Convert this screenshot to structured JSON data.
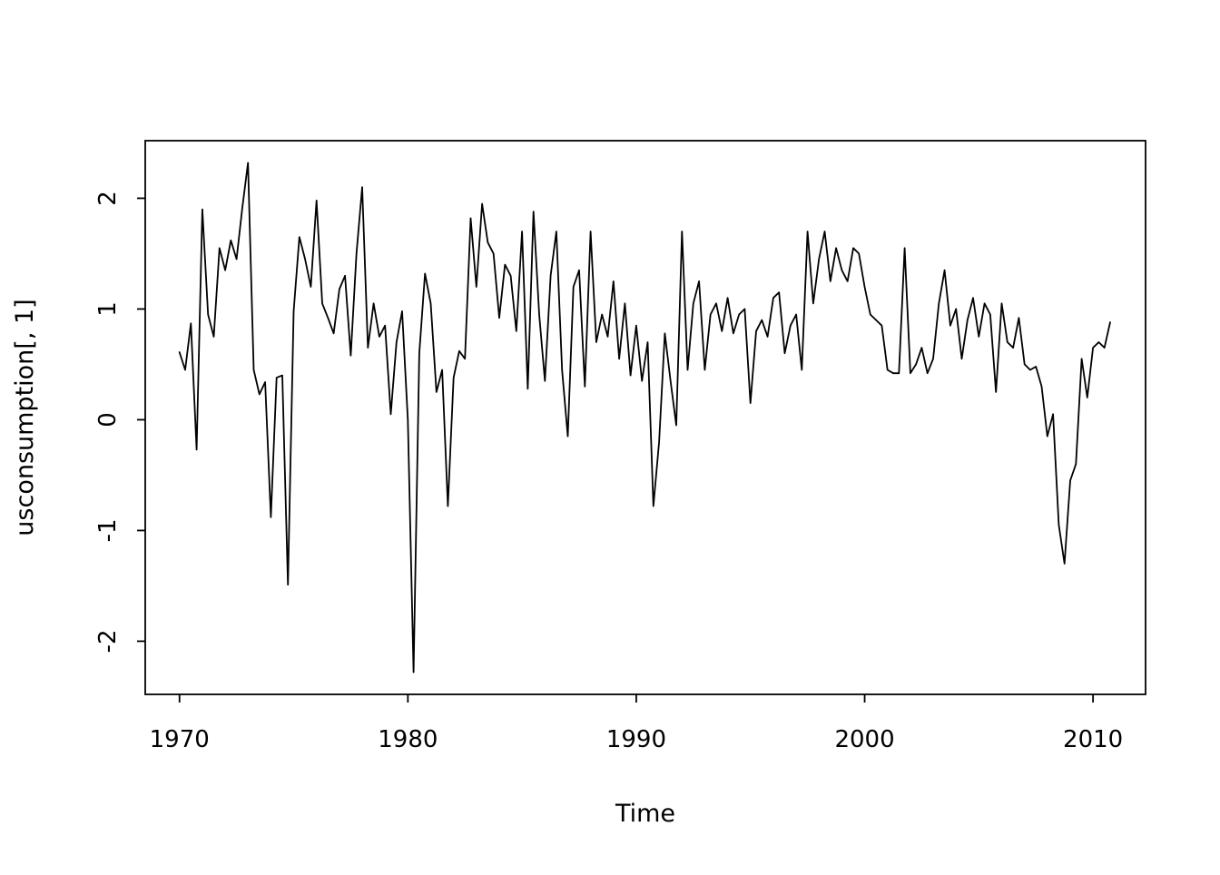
{
  "figure": {
    "background": "#ffffff",
    "x_axis_title": "Time",
    "y_axis_title": "usconsumption[, 1]"
  },
  "chart_data": {
    "type": "line",
    "title": "",
    "xlabel": "Time",
    "ylabel": "usconsumption[, 1]",
    "line_color": "#000000",
    "background": "#ffffff",
    "grid": false,
    "legend": "none",
    "x_start": 1970,
    "x_step": 0.25,
    "frequency": 4,
    "x_ticks": [
      1970,
      1980,
      1990,
      2000,
      2010
    ],
    "y_ticks": [
      -2,
      -1,
      0,
      1,
      2
    ],
    "xlim": [
      1968.5,
      2012.3
    ],
    "ylim": [
      -2.48,
      2.52
    ],
    "series": [
      {
        "name": "usconsumption[, 1]",
        "values": [
          0.61,
          0.45,
          0.87,
          -0.27,
          1.9,
          0.95,
          0.75,
          1.55,
          1.35,
          1.62,
          1.45,
          1.91,
          2.32,
          0.45,
          0.23,
          0.34,
          -0.88,
          0.38,
          0.4,
          -1.49,
          0.98,
          1.65,
          1.45,
          1.2,
          1.98,
          1.05,
          0.92,
          0.78,
          1.18,
          1.3,
          0.58,
          1.5,
          2.1,
          0.65,
          1.05,
          0.75,
          0.85,
          0.05,
          0.7,
          0.98,
          0.0,
          -2.28,
          0.6,
          1.32,
          1.05,
          0.25,
          0.45,
          -0.78,
          0.38,
          0.62,
          0.55,
          1.82,
          1.2,
          1.95,
          1.6,
          1.5,
          0.92,
          1.4,
          1.3,
          0.8,
          1.7,
          0.28,
          1.88,
          0.95,
          0.35,
          1.3,
          1.7,
          0.45,
          -0.15,
          1.2,
          1.35,
          0.3,
          1.7,
          0.7,
          0.95,
          0.75,
          1.25,
          0.55,
          1.05,
          0.4,
          0.85,
          0.35,
          0.7,
          -0.78,
          -0.2,
          0.78,
          0.35,
          -0.05,
          1.7,
          0.45,
          1.05,
          1.25,
          0.45,
          0.95,
          1.05,
          0.8,
          1.1,
          0.78,
          0.95,
          1.0,
          0.15,
          0.8,
          0.9,
          0.75,
          1.1,
          1.15,
          0.6,
          0.85,
          0.95,
          0.45,
          1.7,
          1.05,
          1.45,
          1.7,
          1.25,
          1.55,
          1.35,
          1.25,
          1.55,
          1.5,
          1.2,
          0.95,
          0.9,
          0.85,
          0.45,
          0.42,
          0.42,
          1.55,
          0.42,
          0.5,
          0.65,
          0.42,
          0.55,
          1.05,
          1.35,
          0.85,
          1.0,
          0.55,
          0.9,
          1.1,
          0.75,
          1.05,
          0.95,
          0.25,
          1.05,
          0.7,
          0.65,
          0.92,
          0.5,
          0.45,
          0.48,
          0.3,
          -0.15,
          0.05,
          -0.95,
          -1.3,
          -0.55,
          -0.4,
          0.55,
          0.2,
          0.65,
          0.7,
          0.65,
          0.88
        ]
      }
    ]
  }
}
